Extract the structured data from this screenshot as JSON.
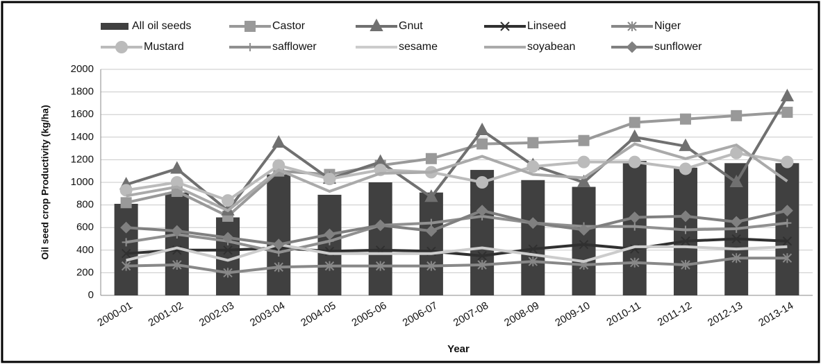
{
  "chart_data": {
    "type": "combo",
    "x_label": "Year",
    "y_label": "Oil seed crop Productivity (kg/ha)",
    "categories": [
      "2000-01",
      "2001-02",
      "2002-03",
      "2003-04",
      "2004-05",
      "2005-06",
      "2006-07",
      "2007-08",
      "2008-09",
      "2009-10",
      "2010-11",
      "2011-12",
      "2012-13",
      "2013-14"
    ],
    "ylim": [
      0,
      2000
    ],
    "yticks": [
      0,
      200,
      400,
      600,
      800,
      1000,
      1200,
      1400,
      1600,
      1800,
      2000
    ],
    "grid": true,
    "series": [
      {
        "name": "All oil seeds",
        "type": "bar",
        "color": "#404040",
        "values": [
          810,
          910,
          690,
          1070,
          890,
          1000,
          910,
          1110,
          1020,
          960,
          1190,
          1130,
          1170,
          1170
        ]
      },
      {
        "name": "Castor",
        "type": "line",
        "marker": "square",
        "color": "#999999",
        "values": [
          820,
          920,
          700,
          1100,
          1070,
          1150,
          1210,
          1340,
          1350,
          1370,
          1530,
          1560,
          1590,
          1620
        ]
      },
      {
        "name": "Gnut",
        "type": "line",
        "marker": "triangle",
        "color": "#707070",
        "values": [
          980,
          1120,
          750,
          1350,
          1030,
          1180,
          870,
          1460,
          1150,
          1000,
          1400,
          1320,
          1000,
          1760
        ]
      },
      {
        "name": "Linseed",
        "type": "line",
        "marker": "x",
        "color": "#303030",
        "values": [
          370,
          400,
          400,
          420,
          390,
          400,
          390,
          350,
          410,
          450,
          410,
          480,
          500,
          480
        ]
      },
      {
        "name": "Niger",
        "type": "line",
        "marker": "star",
        "color": "#888888",
        "values": [
          260,
          270,
          200,
          250,
          260,
          260,
          260,
          270,
          300,
          270,
          290,
          270,
          330,
          330
        ]
      },
      {
        "name": "Mustard",
        "type": "line",
        "marker": "circle",
        "color": "#bbbbbb",
        "values": [
          930,
          1000,
          840,
          1150,
          1030,
          1110,
          1090,
          1000,
          1140,
          1180,
          1180,
          1120,
          1260,
          1180
        ]
      },
      {
        "name": "safflower",
        "type": "line",
        "marker": "plus",
        "color": "#909090",
        "values": [
          470,
          540,
          480,
          380,
          480,
          620,
          640,
          700,
          640,
          610,
          610,
          580,
          590,
          640
        ]
      },
      {
        "name": "sesame",
        "type": "line",
        "marker": "none",
        "color": "#cccccc",
        "values": [
          310,
          420,
          310,
          450,
          370,
          370,
          370,
          420,
          360,
          300,
          430,
          430,
          410,
          430
        ]
      },
      {
        "name": "soyabean",
        "type": "line",
        "marker": "none",
        "color": "#aaaaaa",
        "values": [
          880,
          960,
          750,
          1110,
          920,
          1080,
          1090,
          1230,
          1070,
          1040,
          1340,
          1210,
          1330,
          1010
        ]
      },
      {
        "name": "sunflower",
        "type": "line",
        "marker": "diamond",
        "color": "#808080",
        "values": [
          600,
          570,
          510,
          450,
          540,
          620,
          570,
          750,
          640,
          580,
          690,
          700,
          650,
          750
        ]
      }
    ]
  }
}
